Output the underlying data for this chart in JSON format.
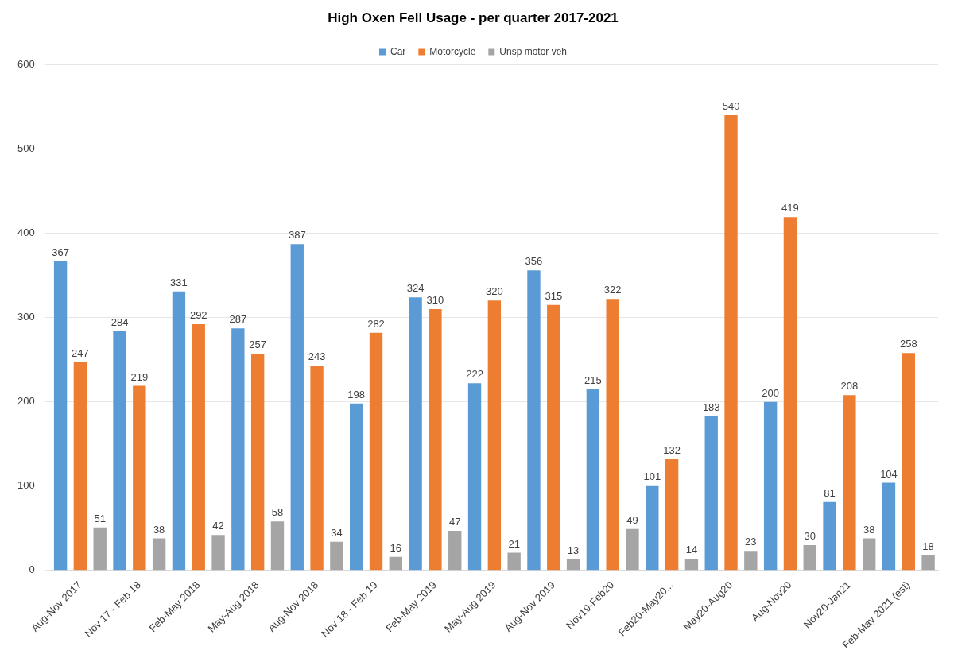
{
  "chart_data": {
    "type": "bar",
    "title": "High Oxen Fell Usage - per quarter 2017-2021",
    "categories": [
      "Aug-Nov 2017",
      "Nov 17 - Feb 18",
      "Feb-May 2018",
      "May-Aug 2018",
      "Aug-Nov 2018",
      "Nov 18 - Feb 19",
      "Feb-May 2019",
      "May-Aug 2019",
      "Aug-Nov 2019",
      "Nov19-Feb20",
      "Feb20-May20...",
      "May20-Aug20",
      "Aug-Nov20",
      "Nov20-Jan21",
      "Feb-May 2021 (est)"
    ],
    "series": [
      {
        "name": "Car",
        "color": "#5b9bd5",
        "values": [
          367,
          284,
          331,
          287,
          387,
          198,
          324,
          222,
          356,
          215,
          101,
          183,
          200,
          81,
          104
        ]
      },
      {
        "name": "Motorcycle",
        "color": "#ed7d31",
        "values": [
          247,
          219,
          292,
          257,
          243,
          282,
          310,
          320,
          315,
          322,
          132,
          540,
          419,
          208,
          258
        ]
      },
      {
        "name": "Unsp motor veh",
        "color": "#a5a5a5",
        "values": [
          51,
          38,
          42,
          58,
          34,
          16,
          47,
          21,
          13,
          49,
          14,
          23,
          30,
          38,
          18
        ]
      }
    ],
    "ylim": [
      0,
      600
    ],
    "yticks": [
      0,
      100,
      200,
      300,
      400,
      500,
      600
    ],
    "grid": "y",
    "legend": "top",
    "data_labels": true
  }
}
